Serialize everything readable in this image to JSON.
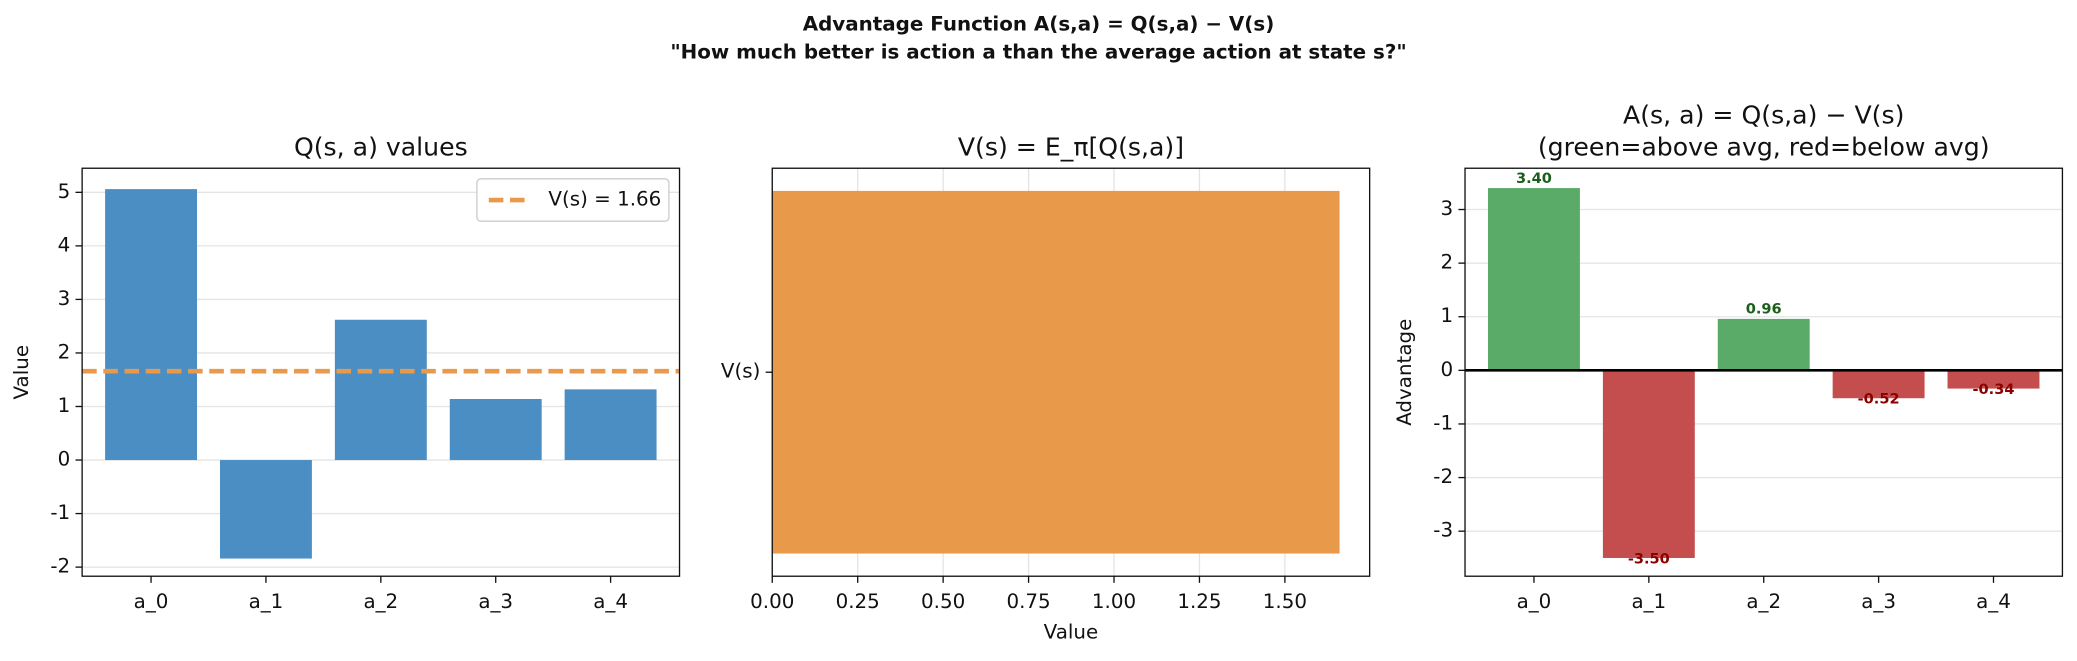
{
  "figure": {
    "title": "Advantage Function  A(s,a) = Q(s,a) − V(s)",
    "subtitle": "\"How much better is action a than the average action at state s?\""
  },
  "chart_data": [
    {
      "type": "bar",
      "title": "Q(s, a) values",
      "y_label": "Value",
      "categories": [
        "a_0",
        "a_1",
        "a_2",
        "a_3",
        "a_4"
      ],
      "values": [
        5.06,
        -1.84,
        2.62,
        1.14,
        1.32
      ],
      "color": "#4a8ec4",
      "ylim": [
        -2.17,
        5.45
      ],
      "yticks": [
        -2,
        -1,
        0,
        1,
        2,
        3,
        4,
        5
      ],
      "grid": true,
      "reference_line": {
        "value": 1.66,
        "label": "V(s) = 1.66",
        "color": "#e8994a"
      },
      "legend": "upper right"
    },
    {
      "type": "barh",
      "title": "V(s) = E_π[Q(s,a)]",
      "x_label": "Value",
      "categories": [
        "V(s)"
      ],
      "values": [
        1.66
      ],
      "color": "#e8994a",
      "xlim": [
        0,
        1.748
      ],
      "xticks": [
        {
          "value": 0,
          "label": "0.00"
        },
        {
          "value": 0.25,
          "label": "0.25"
        },
        {
          "value": 0.5,
          "label": "0.50"
        },
        {
          "value": 0.75,
          "label": "0.75"
        },
        {
          "value": 1,
          "label": "1.00"
        },
        {
          "value": 1.25,
          "label": "1.25"
        },
        {
          "value": 1.5,
          "label": "1.50"
        }
      ],
      "grid": true
    },
    {
      "type": "bar",
      "title": "A(s, a) = Q(s,a) − V(s)",
      "subtitle": "(green=above avg, red=below avg)",
      "y_label": "Advantage",
      "categories": [
        "a_0",
        "a_1",
        "a_2",
        "a_3",
        "a_4"
      ],
      "values": [
        3.4,
        -3.5,
        0.96,
        -0.52,
        -0.34
      ],
      "value_labels": [
        "3.40",
        "-3.50",
        "0.96",
        "-0.52",
        "-0.34"
      ],
      "colors": [
        "#5aab68",
        "#c44e4e",
        "#5aab68",
        "#c44e4e",
        "#c44e4e"
      ],
      "ylim": [
        -3.84,
        3.77
      ],
      "yticks": [
        -3,
        -2,
        -1,
        0,
        1,
        2,
        3
      ],
      "grid": true,
      "zero_line": true
    }
  ]
}
